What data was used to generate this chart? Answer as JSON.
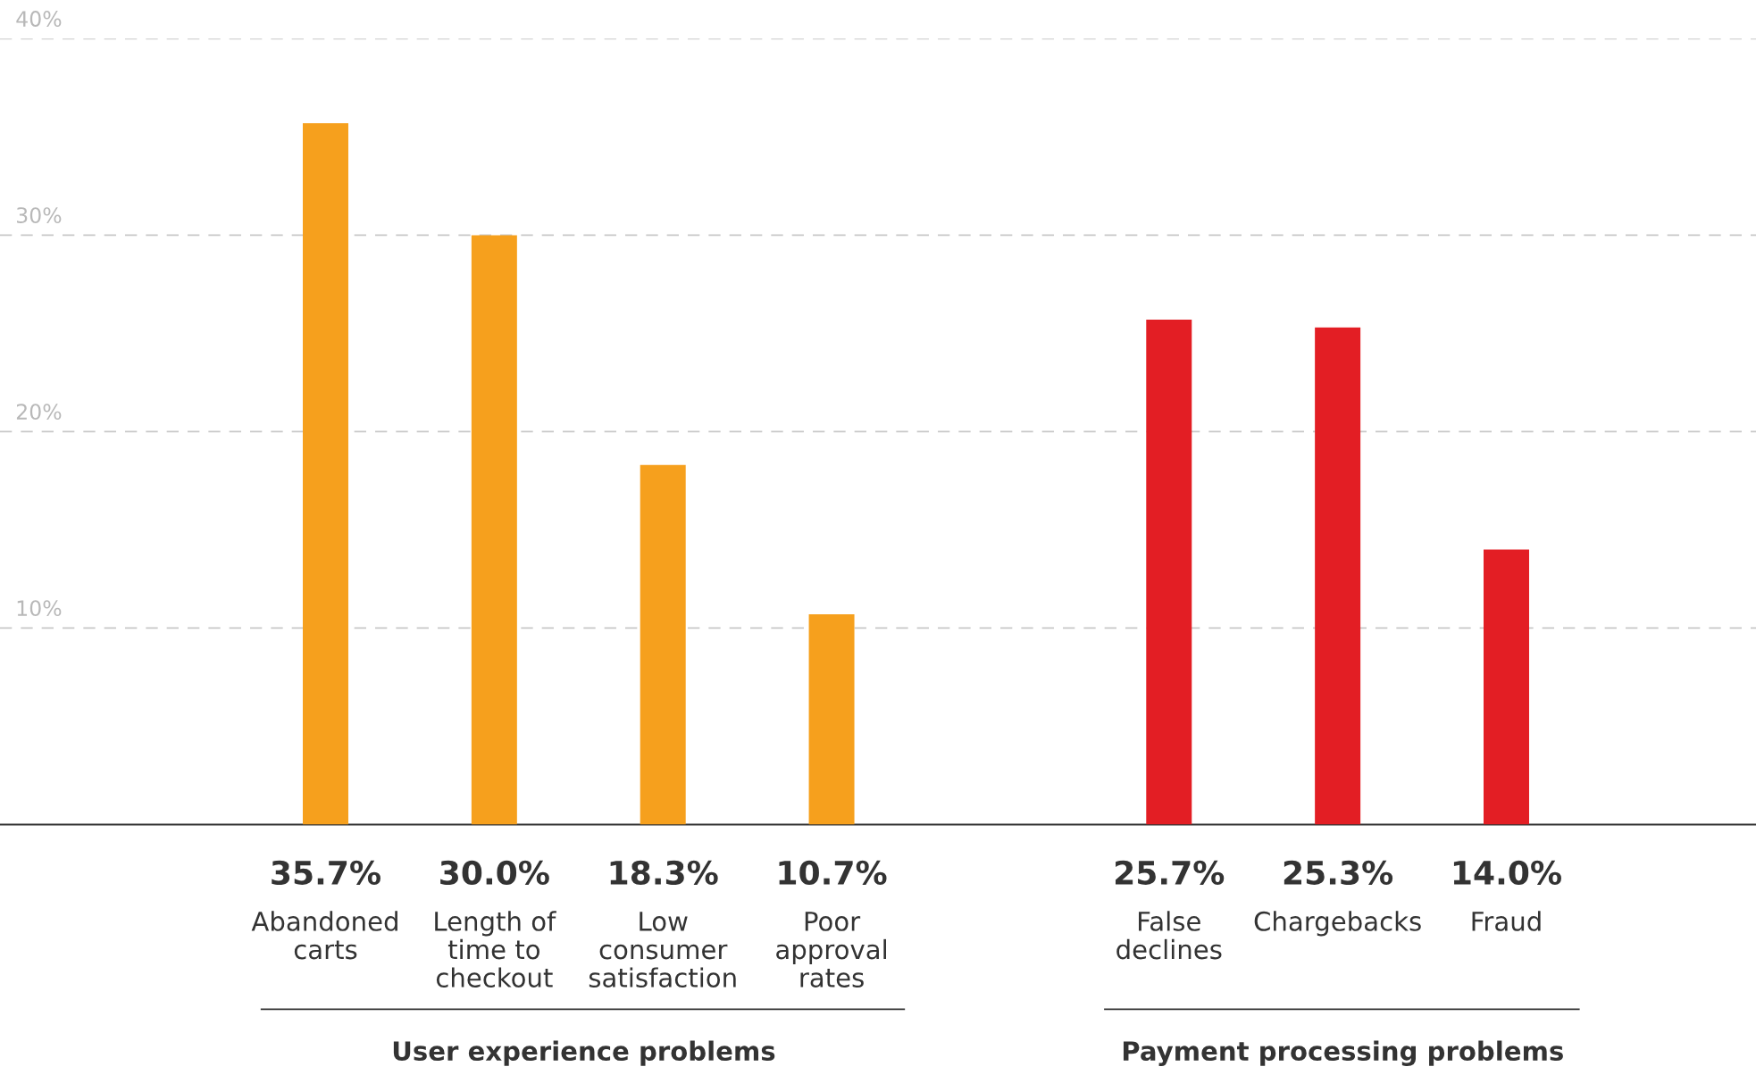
{
  "chart_data": {
    "type": "bar",
    "categories": [
      "Abandoned\ncarts",
      "Length of\ntime to\ncheckout",
      "Low\nconsumer\nsatisfaction",
      "Poor\napproval\nrates",
      null,
      "False\ndeclines",
      "Chargebacks",
      "Fraud"
    ],
    "values": [
      35.7,
      30.0,
      18.3,
      10.7,
      null,
      25.7,
      25.3,
      14.0
    ],
    "value_labels": [
      "35.7%",
      "30.0%",
      "18.3%",
      "10.7%",
      null,
      "25.7%",
      "25.3%",
      "14.0%"
    ],
    "colors": [
      "#f6a01d",
      "#f6a01d",
      "#f6a01d",
      "#f6a01d",
      null,
      "#e31e24",
      "#e31e24",
      "#e31e24"
    ],
    "ylim": [
      0,
      40
    ],
    "yticks": [
      {
        "value": 10,
        "label": "10%"
      },
      {
        "value": 20,
        "label": "20%"
      },
      {
        "value": 30,
        "label": "30%"
      },
      {
        "value": 40,
        "label": "40%"
      }
    ],
    "grid": "y",
    "annotations": [
      "User experience problems",
      "Payment processing problems"
    ]
  }
}
